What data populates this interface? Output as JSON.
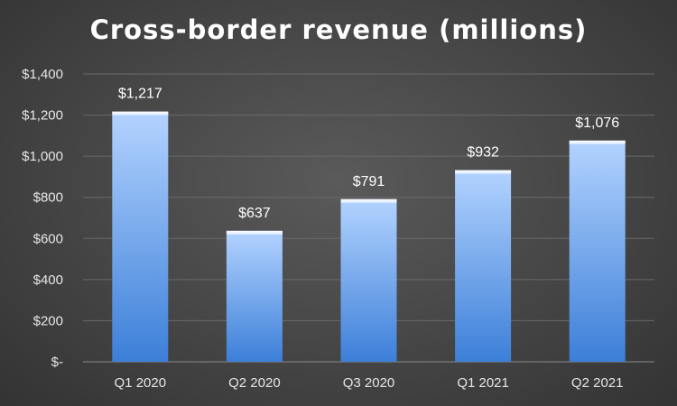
{
  "chart_data": {
    "type": "bar",
    "title": "Cross-border revenue (millions)",
    "categories": [
      "Q1 2020",
      "Q2 2020",
      "Q3 2020",
      "Q1 2021",
      "Q2 2021"
    ],
    "values": [
      1217,
      637,
      791,
      932,
      1076
    ],
    "value_labels": [
      "$1,217",
      "$637",
      "$791",
      "$932",
      "$1,076"
    ],
    "y_ticks": [
      0,
      200,
      400,
      600,
      800,
      1000,
      1200,
      1400
    ],
    "y_tick_labels": [
      "$-",
      "$200",
      "$400",
      "$600",
      "$800",
      "$1,000",
      "$1,200",
      "$1,400"
    ],
    "ylim": [
      0,
      1400
    ],
    "xlabel": "",
    "ylabel": "",
    "grid": true,
    "legend": "none",
    "colors": {
      "bar_top": "#b3d3ff",
      "bar_bottom": "#3c7fd8",
      "text": "#ffffff",
      "axis_text": "#e6e6e6",
      "grid": "#6a6a6a"
    }
  }
}
